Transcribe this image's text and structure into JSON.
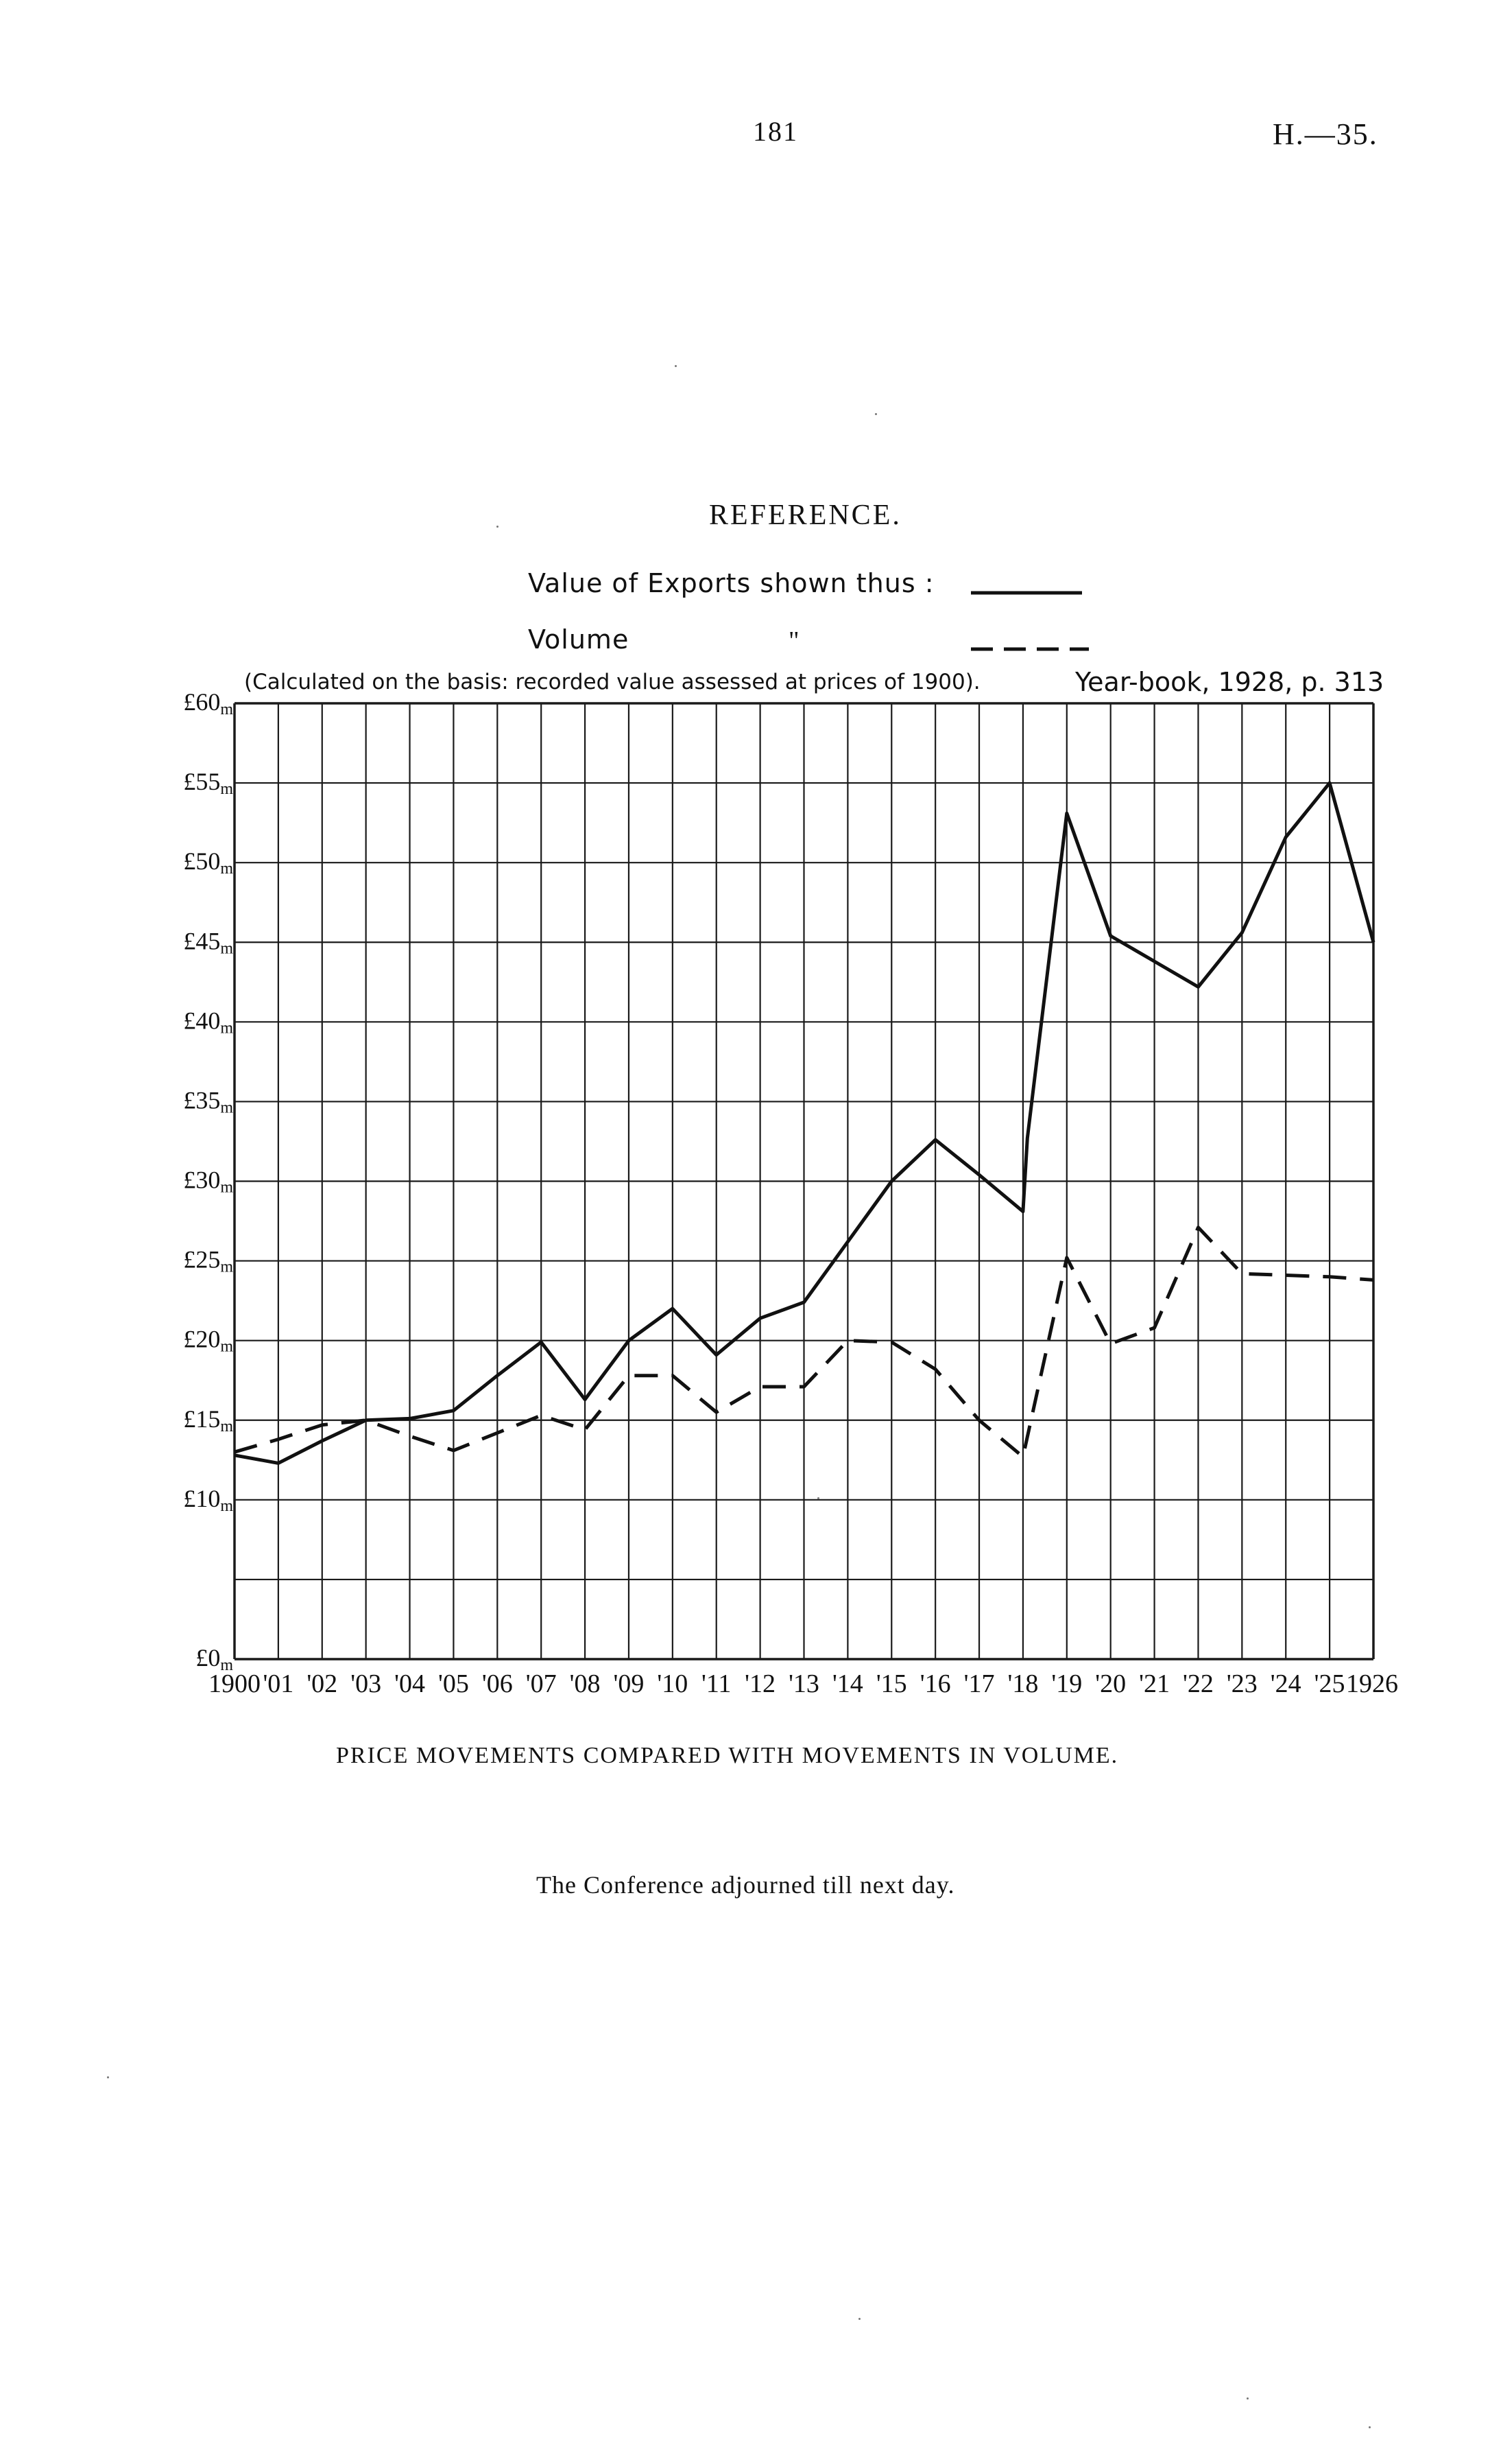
{
  "header": {
    "page_number": "181",
    "document_ref": "H.—35."
  },
  "reference": {
    "title": "REFERENCE.",
    "value_label": "Value of Exports shown thus :",
    "volume_label": "Volume",
    "ditto_mark": "\""
  },
  "notes": {
    "calculation": "(Calculated on the basis: recorded value assessed at prices of 1900).",
    "source": "Year-book, 1928, p. 313"
  },
  "chart_data": {
    "type": "line",
    "x_tick_labels": [
      "1900",
      "'01",
      "'02",
      "'03",
      "'04",
      "'05",
      "'06",
      "'07",
      "'08",
      "'09",
      "'10",
      "'11",
      "'12",
      "'13",
      "'14",
      "'15",
      "'16",
      "'17",
      "'18",
      "'19",
      "'20",
      "'21",
      "'22",
      "'23",
      "'24",
      "'25",
      "1926"
    ],
    "y_tick_labels": [
      "£0m",
      "£10m",
      "£15m",
      "£20m",
      "£25m",
      "£30m",
      "£35m",
      "£40m",
      "£45m",
      "£50m",
      "£55m",
      "£60m"
    ],
    "y_tick_values": [
      0,
      10,
      15,
      20,
      25,
      30,
      35,
      40,
      45,
      50,
      55,
      60
    ],
    "ylim": [
      0,
      60
    ],
    "grid": true,
    "legend": "top-right",
    "series": [
      {
        "name": "Value of Exports",
        "style": "solid",
        "color": "#111111",
        "x": [
          1900,
          1901,
          1902,
          1903,
          1904,
          1905,
          1906,
          1907,
          1908,
          1909,
          1910,
          1911,
          1912,
          1913,
          1914,
          1915,
          1916,
          1917,
          1918,
          1918.1,
          1919,
          1920,
          1921,
          1922,
          1923,
          1924,
          1925,
          1926
        ],
        "values": [
          12.8,
          12.3,
          13.7,
          15.0,
          15.1,
          15.6,
          17.8,
          19.9,
          16.3,
          20.0,
          22.0,
          19.1,
          21.4,
          22.4,
          26.2,
          30.0,
          32.6,
          30.4,
          28.1,
          32.7,
          53.1,
          45.4,
          43.8,
          42.2,
          45.6,
          51.6,
          55.0,
          45.0
        ]
      },
      {
        "name": "Volume",
        "style": "dashed",
        "color": "#111111",
        "x": [
          1900,
          1901,
          1902,
          1903,
          1904,
          1905,
          1906,
          1907,
          1908,
          1909,
          1910,
          1911,
          1912,
          1913,
          1914,
          1915,
          1916,
          1917,
          1918,
          1919,
          1920,
          1921,
          1922,
          1923,
          1924,
          1925,
          1926
        ],
        "values": [
          13.0,
          13.8,
          14.7,
          15.0,
          14.0,
          13.1,
          14.2,
          15.3,
          14.4,
          17.8,
          17.8,
          15.5,
          17.1,
          17.1,
          20.0,
          19.9,
          18.2,
          15.0,
          12.7,
          25.2,
          19.8,
          20.8,
          27.1,
          24.2,
          24.1,
          24.0,
          23.8
        ]
      }
    ]
  },
  "caption": "PRICE MOVEMENTS COMPARED WITH MOVEMENTS IN VOLUME.",
  "closing_line": "The Conference adjourned till next day."
}
